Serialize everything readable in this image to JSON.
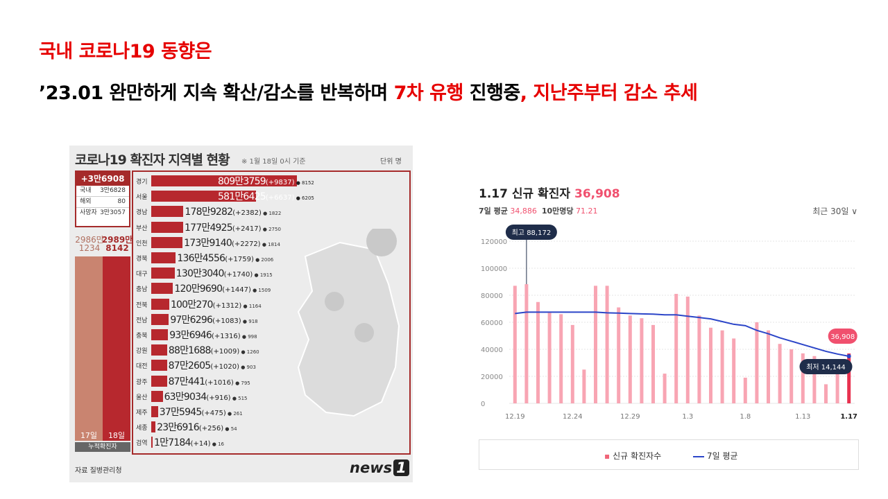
{
  "heading": {
    "line1": "국내 코로나19 동향은",
    "line2_a": "’23.01 완만하게 지속 확산/감소를 반복하며 ",
    "line2_b": "7차 유행",
    "line2_c": " 진행중",
    "line2_d": ", 지난주부터 감소 추세"
  },
  "infographic": {
    "title": "코로나19 확진자 지역별 현황",
    "note": "※ 1월 18일 0시 기준",
    "unit": "단위 명",
    "total_new": "+3만6908",
    "domestic_label": "국내",
    "domestic_value": "3만6828",
    "overseas_label": "해외",
    "overseas_value": "80",
    "deaths_label": "사망자",
    "deaths_value": "3만3057",
    "cum_17_value": "2986만 1234",
    "cum_18_value": "2989만 8142",
    "cum_17_day": "17일",
    "cum_18_day": "18일",
    "cum_caption": "누적확진자",
    "regions": [
      {
        "name": "경기",
        "value": "809만3759",
        "inc": "(+9837)",
        "deaths": "8152",
        "total": 8093759
      },
      {
        "name": "서울",
        "value": "581만6425",
        "inc": "(+6637)",
        "deaths": "6205",
        "total": 5816425
      },
      {
        "name": "경남",
        "value": "178만9282",
        "inc": "(+2382)",
        "deaths": "1822",
        "total": 1789282
      },
      {
        "name": "부산",
        "value": "177만4925",
        "inc": "(+2417)",
        "deaths": "2750",
        "total": 1774925
      },
      {
        "name": "인천",
        "value": "173만9140",
        "inc": "(+2272)",
        "deaths": "1814",
        "total": 1739140
      },
      {
        "name": "경북",
        "value": "136만4556",
        "inc": "(+1759)",
        "deaths": "2006",
        "total": 1364556
      },
      {
        "name": "대구",
        "value": "130만3040",
        "inc": "(+1740)",
        "deaths": "1915",
        "total": 1303040
      },
      {
        "name": "충남",
        "value": "120만9690",
        "inc": "(+1447)",
        "deaths": "1509",
        "total": 1209690
      },
      {
        "name": "전북",
        "value": "100만270",
        "inc": "(+1312)",
        "deaths": "1164",
        "total": 1000270
      },
      {
        "name": "전남",
        "value": "97만6296",
        "inc": "(+1083)",
        "deaths": "918",
        "total": 976296
      },
      {
        "name": "충북",
        "value": "93만6946",
        "inc": "(+1316)",
        "deaths": "998",
        "total": 936946
      },
      {
        "name": "강원",
        "value": "88만1688",
        "inc": "(+1009)",
        "deaths": "1260",
        "total": 881688
      },
      {
        "name": "대전",
        "value": "87만2605",
        "inc": "(+1020)",
        "deaths": "903",
        "total": 872605
      },
      {
        "name": "광주",
        "value": "87만441",
        "inc": "(+1016)",
        "deaths": "795",
        "total": 870441
      },
      {
        "name": "울산",
        "value": "63만9034",
        "inc": "(+916)",
        "deaths": "515",
        "total": 639034
      },
      {
        "name": "제주",
        "value": "37만5945",
        "inc": "(+475)",
        "deaths": "261",
        "total": 375945
      },
      {
        "name": "세종",
        "value": "23만6916",
        "inc": "(+256)",
        "deaths": "54",
        "total": 236916
      },
      {
        "name": "검역",
        "value": "1만7184",
        "inc": "(+14)",
        "deaths": "16",
        "total": 17184
      }
    ],
    "source": "자료 질병관리청",
    "logo_text": "news",
    "logo_num": "1"
  },
  "chart_header": {
    "title": "1.17 신규 확진자",
    "value": "36,908",
    "avg_label": "7일 평균",
    "avg_value": "34,886",
    "per_label": "10만명당",
    "per_value": "71.21",
    "range": "최근 30일 ∨"
  },
  "chart_data": {
    "type": "bar",
    "ylim": [
      0,
      120000
    ],
    "yticks": [
      0,
      20000,
      40000,
      60000,
      80000,
      100000,
      120000
    ],
    "xticks": [
      "12.19",
      "12.24",
      "12.29",
      "1.3",
      "1.8",
      "1.13",
      "1.17"
    ],
    "categories": [
      "12.19",
      "12.20",
      "12.21",
      "12.22",
      "12.23",
      "12.24",
      "12.25",
      "12.26",
      "12.27",
      "12.28",
      "12.29",
      "12.30",
      "12.31",
      "1.1",
      "1.2",
      "1.3",
      "1.4",
      "1.5",
      "1.6",
      "1.7",
      "1.8",
      "1.9",
      "1.10",
      "1.11",
      "1.12",
      "1.13",
      "1.14",
      "1.15",
      "1.16",
      "1.17"
    ],
    "series": [
      {
        "name": "신규 확진자수",
        "color": "#f8a5b3",
        "values": [
          87000,
          88172,
          75000,
          67000,
          66000,
          58000,
          25000,
          87000,
          87000,
          71000,
          65000,
          63000,
          58000,
          22000,
          81000,
          79000,
          65000,
          56000,
          54000,
          48000,
          19000,
          60000,
          54000,
          44000,
          40000,
          37000,
          35000,
          14144,
          30000,
          36908
        ]
      },
      {
        "name": "7일 평균",
        "color": "#2b45c8",
        "values": [
          66500,
          67500,
          67500,
          67500,
          67500,
          67500,
          67500,
          67500,
          67000,
          66800,
          66500,
          66200,
          66000,
          65500,
          65500,
          64500,
          63500,
          62500,
          60500,
          58500,
          57500,
          54000,
          51500,
          48500,
          46000,
          43500,
          41000,
          38500,
          36500,
          34886
        ]
      }
    ],
    "annotations": {
      "max_label": "최고 88,172",
      "min_label": "최저 14,144",
      "last_label": "36,908"
    },
    "legend": [
      "신규 확진자수",
      "7일 평균"
    ]
  }
}
